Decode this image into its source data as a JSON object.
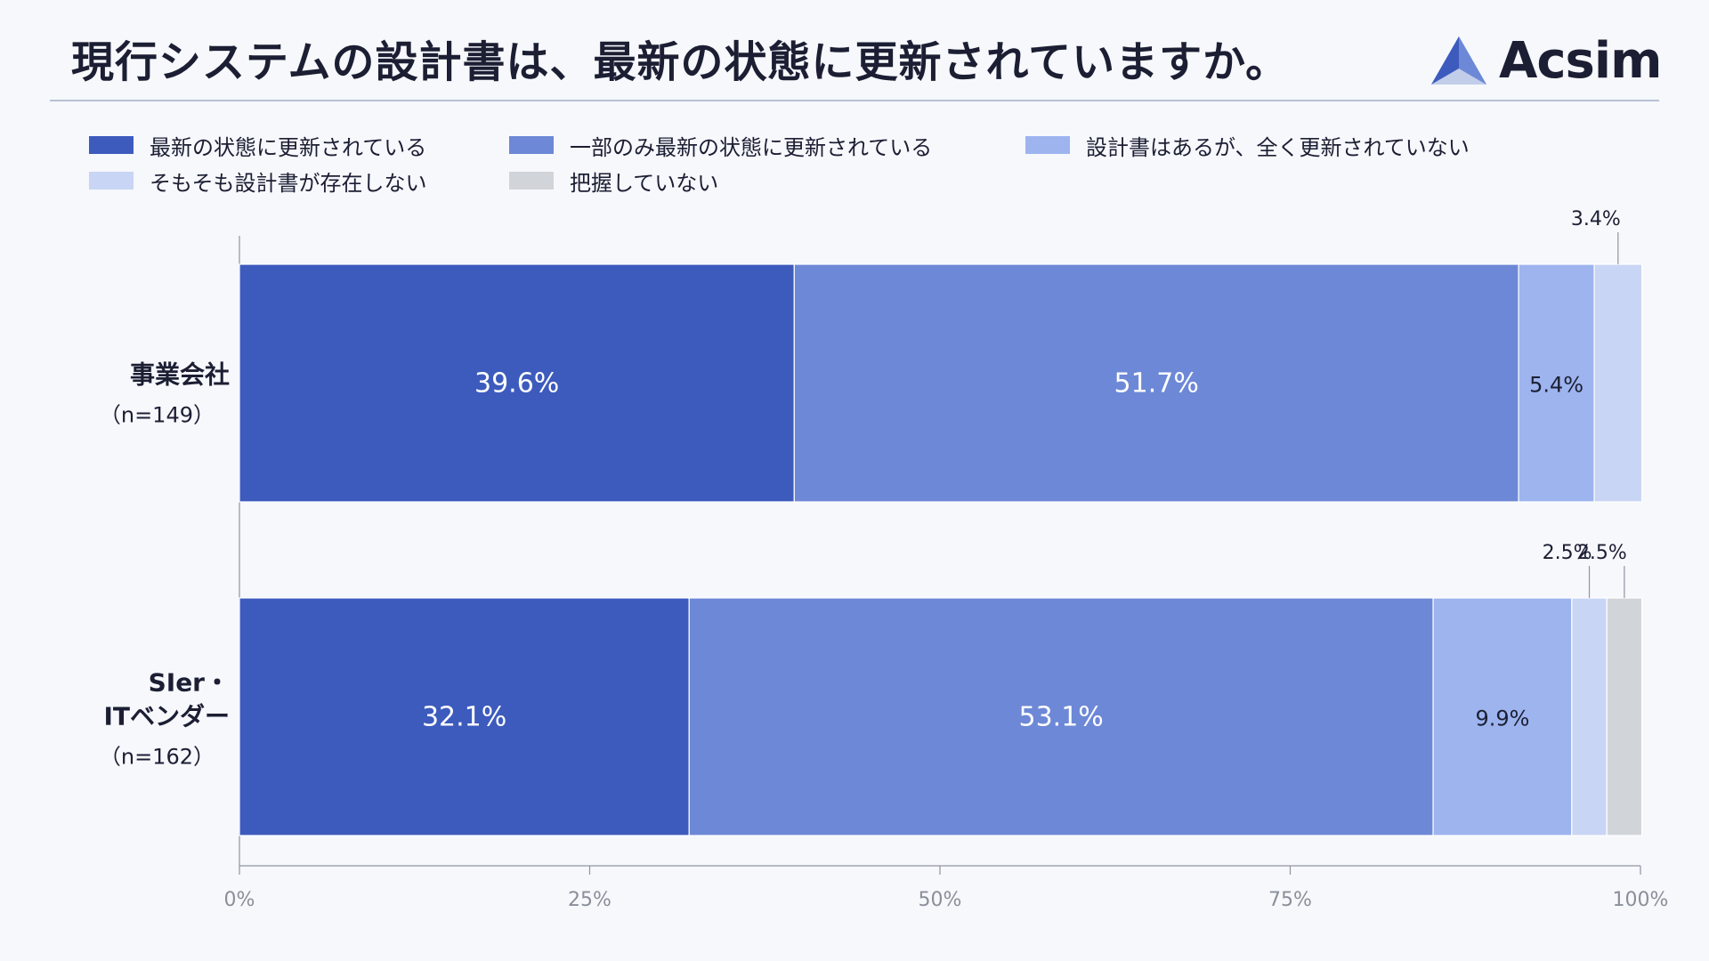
{
  "header": {
    "title": "現行システムの設計書は、最新の状態に更新されていますか。",
    "brand": "Acsim"
  },
  "colors": {
    "background": "#f6f8fc",
    "series": [
      "#3d5bbd",
      "#6d88d6",
      "#9db4ef",
      "#c9d5f4",
      "#d1d5d9"
    ]
  },
  "legend": {
    "items": [
      {
        "label": "最新の状態に更新されている"
      },
      {
        "label": "一部のみ最新の状態に更新されている"
      },
      {
        "label": "設計書はあるが、全く更新されていない"
      },
      {
        "label": "そもそも設計書が存在しない"
      },
      {
        "label": "把握していない"
      }
    ]
  },
  "chart_data": {
    "type": "bar",
    "orientation": "horizontal",
    "stacked": true,
    "categories": [
      {
        "name": "事業会社",
        "n_label": "（n=149）"
      },
      {
        "name": "SIer・\nITベンダー",
        "n_label": "（n=162）"
      }
    ],
    "series": [
      {
        "name": "最新の状態に更新されている",
        "values": [
          39.6,
          32.1
        ]
      },
      {
        "name": "一部のみ最新の状態に更新されている",
        "values": [
          51.7,
          53.1
        ]
      },
      {
        "name": "設計書はあるが、全く更新されていない",
        "values": [
          5.4,
          9.9
        ]
      },
      {
        "name": "そもそも設計書が存在しない",
        "values": [
          3.4,
          2.5
        ]
      },
      {
        "name": "把握していない",
        "values": [
          0,
          2.5
        ]
      }
    ],
    "data_labels": [
      [
        "39.6%",
        "51.7%",
        "5.4%",
        "3.4%",
        null
      ],
      [
        "32.1%",
        "53.1%",
        "9.9%",
        "2.5%",
        "2.5%"
      ]
    ],
    "xlim": [
      0,
      100
    ],
    "xticks": [
      0,
      25,
      50,
      75,
      100
    ],
    "xtick_labels": [
      "0%",
      "25%",
      "50%",
      "75%",
      "100%"
    ],
    "grid": false,
    "legend_position": "top"
  }
}
